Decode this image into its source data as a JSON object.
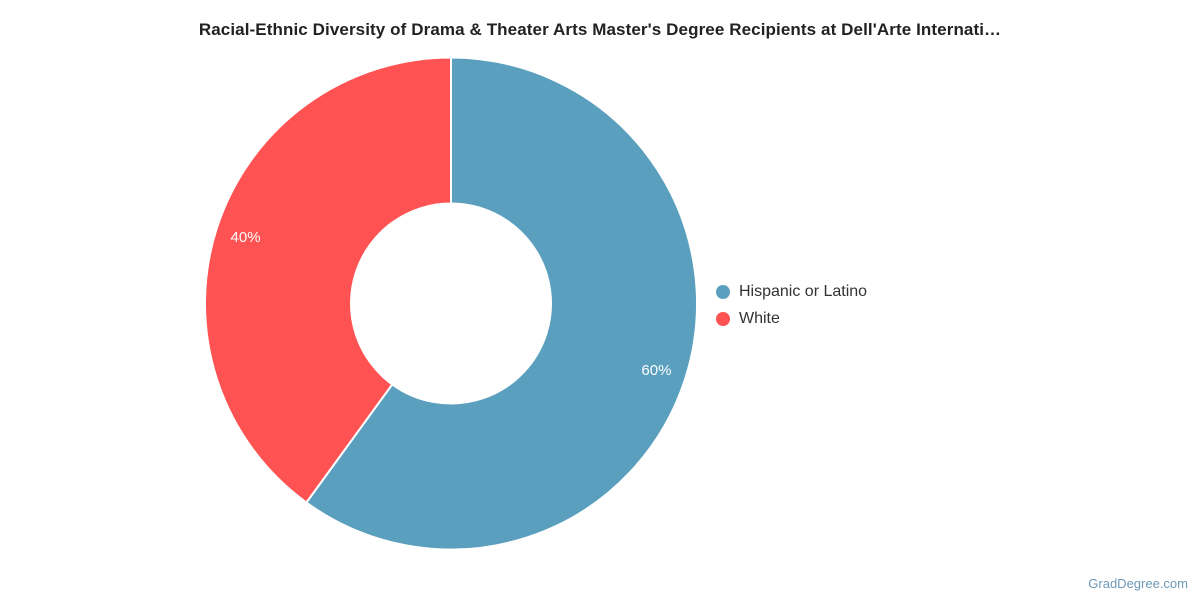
{
  "title": "Racial-Ethnic Diversity of Drama & Theater Arts Master's Degree Recipients at Dell'Arte Internati…",
  "watermark": "GradDegree.com",
  "chart_data": {
    "type": "pie",
    "subtype": "donut",
    "title": "Racial-Ethnic Diversity of Drama & Theater Arts Master's Degree Recipients at Dell'Arte Internati…",
    "categories": [
      "Hispanic or Latino",
      "White"
    ],
    "values": [
      60,
      40
    ],
    "value_unit": "%",
    "slice_labels": [
      "60%",
      "40%"
    ],
    "colors": [
      "#5b9fbe",
      "#ff5252"
    ],
    "start_angle_deg": -90,
    "direction": "clockwise",
    "legend_position": "right",
    "label_text_color": "#ffffff"
  },
  "legend": {
    "items": [
      {
        "label": "Hispanic or Latino",
        "color": "#5b9fbe"
      },
      {
        "label": "White",
        "color": "#ff5252"
      }
    ]
  }
}
